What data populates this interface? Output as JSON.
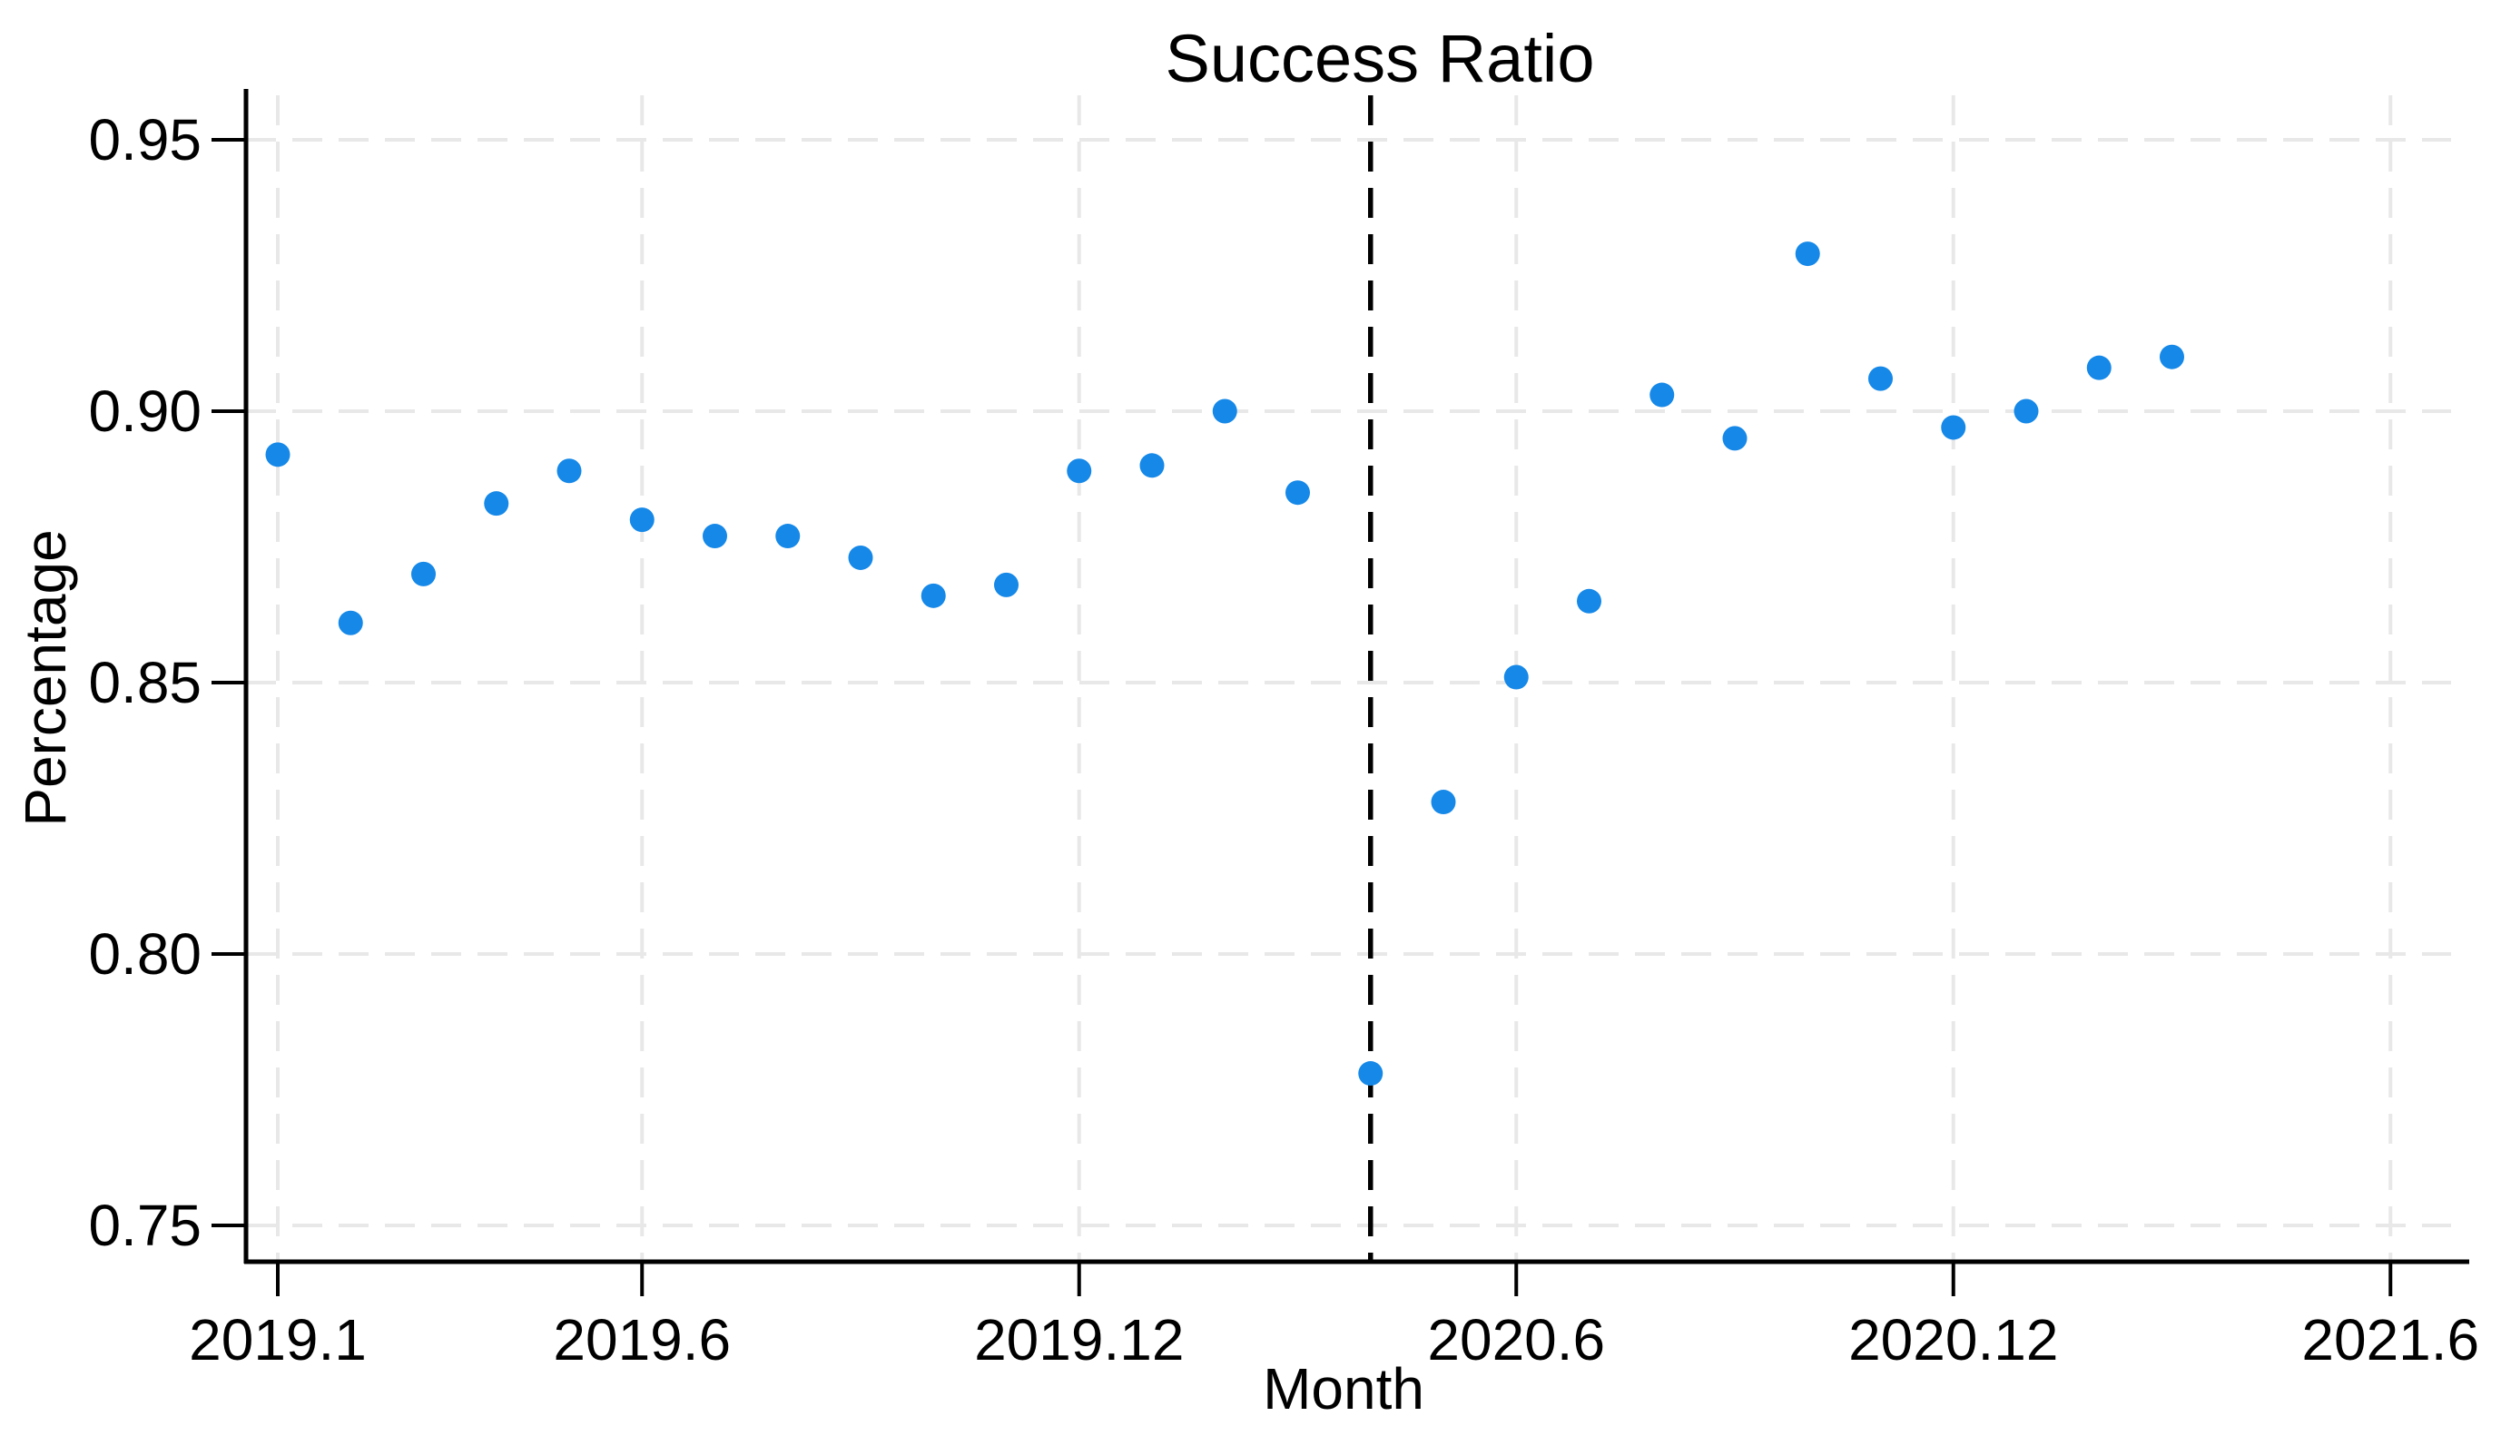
{
  "figure": {
    "title": "Success Ratio",
    "xlabel": "Month",
    "ylabel": "Percentage"
  },
  "chart_data": {
    "type": "scatter",
    "title": "Success Ratio",
    "xlabel": "Month",
    "ylabel": "Percentage",
    "grid": true,
    "legend": false,
    "marker_color": "#1588e8",
    "grid_color": "#e8e8e8",
    "axis_color": "#000000",
    "vline_color": "#000000",
    "ylim": [
      0.743,
      0.958
    ],
    "y_ticks": [
      "0.75",
      "0.80",
      "0.85",
      "0.90",
      "0.95"
    ],
    "x_tick_labels": [
      "2019.1",
      "2019.6",
      "2019.12",
      "2020.6",
      "2020.12",
      "2021.6"
    ],
    "x_axis_months": [
      "2019.1",
      "2019.2",
      "2019.3",
      "2019.4",
      "2019.5",
      "2019.6",
      "2019.7",
      "2019.8",
      "2019.9",
      "2019.10",
      "2019.11",
      "2019.12",
      "2020.1",
      "2020.2",
      "2020.3",
      "2020.4",
      "2020.5",
      "2020.6",
      "2020.7",
      "2020.8",
      "2020.9",
      "2020.10",
      "2020.11",
      "2020.12",
      "2021.1",
      "2021.2",
      "2021.3",
      "2021.4",
      "2021.5",
      "2021.6"
    ],
    "vline_x": "2020.4",
    "x": [
      "2019.1",
      "2019.2",
      "2019.3",
      "2019.4",
      "2019.5",
      "2019.6",
      "2019.7",
      "2019.8",
      "2019.9",
      "2019.10",
      "2019.11",
      "2019.12",
      "2020.1",
      "2020.2",
      "2020.3",
      "2020.4",
      "2020.5",
      "2020.6",
      "2020.7",
      "2020.8",
      "2020.9",
      "2020.10",
      "2020.11",
      "2020.12",
      "2021.1",
      "2021.2",
      "2021.3"
    ],
    "y": [
      0.892,
      0.861,
      0.87,
      0.883,
      0.889,
      0.88,
      0.877,
      0.877,
      0.873,
      0.866,
      0.868,
      0.889,
      0.89,
      0.9,
      0.885,
      0.778,
      0.828,
      0.851,
      0.865,
      0.903,
      0.895,
      0.929,
      0.906,
      0.897,
      0.9,
      0.908,
      0.91
    ]
  }
}
